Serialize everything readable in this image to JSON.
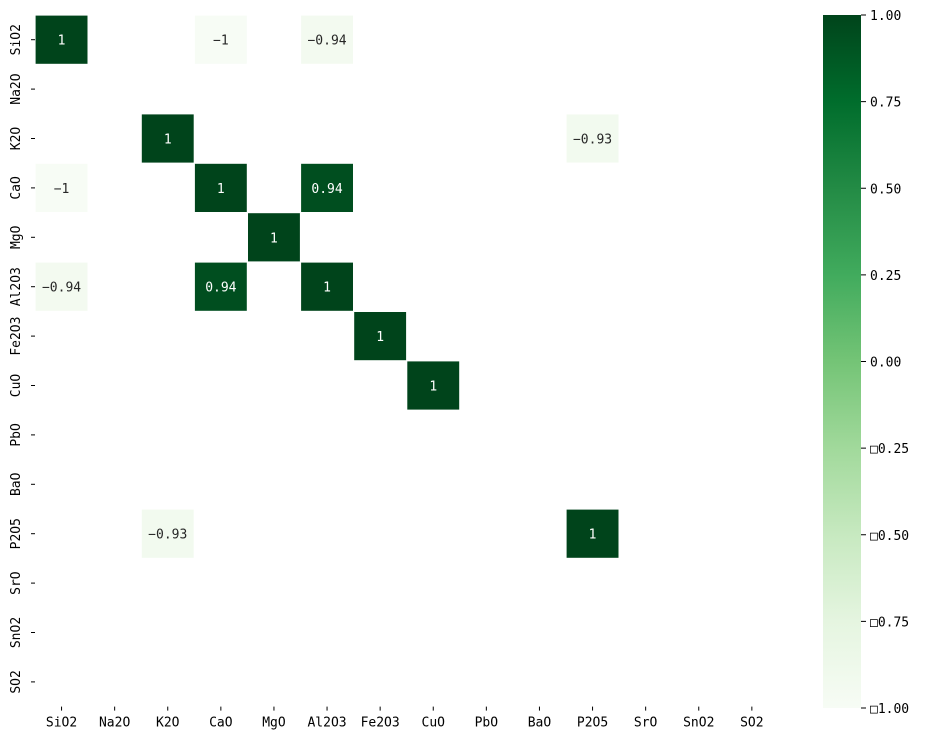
{
  "chart_data": {
    "type": "heatmap",
    "title": "",
    "xlabel": "",
    "ylabel": "",
    "x_categories": [
      "SiO2",
      "Na2O",
      "K2O",
      "CaO",
      "MgO",
      "Al2O3",
      "Fe2O3",
      "CuO",
      "PbO",
      "BaO",
      "P2O5",
      "SrO",
      "SnO2",
      "SO2"
    ],
    "y_categories": [
      "SiO2",
      "Na2O",
      "K2O",
      "CaO",
      "MgO",
      "Al2O3",
      "Fe2O3",
      "CuO",
      "PbO",
      "BaO",
      "P2O5",
      "SrO",
      "SnO2",
      "SO2"
    ],
    "x_tick_labels": [
      "SiO2",
      "Na2O",
      "K2O",
      "CaO",
      "MgO",
      "Al2O3",
      "Fe2O3",
      "CuO",
      "PbO",
      "BaO",
      "P2O5",
      "SrO",
      "SnO2",
      "SO2"
    ],
    "y_tick_labels": [
      "SiO2",
      "Na2O",
      "K2O",
      "CaO",
      "MgO",
      "Al2O3",
      "Fe2O3",
      "CuO",
      "PbO",
      "BaO",
      "P2O5",
      "SrO",
      "SnO2",
      "SO2"
    ],
    "cells": [
      {
        "row": 0,
        "col": 0,
        "value": 1,
        "label": "1"
      },
      {
        "row": 0,
        "col": 3,
        "value": -1,
        "label": "−1"
      },
      {
        "row": 0,
        "col": 5,
        "value": -0.94,
        "label": "−0.94"
      },
      {
        "row": 2,
        "col": 2,
        "value": 1,
        "label": "1"
      },
      {
        "row": 2,
        "col": 10,
        "value": -0.93,
        "label": "−0.93"
      },
      {
        "row": 3,
        "col": 0,
        "value": -1,
        "label": "−1"
      },
      {
        "row": 3,
        "col": 3,
        "value": 1,
        "label": "1"
      },
      {
        "row": 3,
        "col": 5,
        "value": 0.94,
        "label": "0.94"
      },
      {
        "row": 4,
        "col": 4,
        "value": 1,
        "label": "1"
      },
      {
        "row": 5,
        "col": 0,
        "value": -0.94,
        "label": "−0.94"
      },
      {
        "row": 5,
        "col": 3,
        "value": 0.94,
        "label": "0.94"
      },
      {
        "row": 5,
        "col": 5,
        "value": 1,
        "label": "1"
      },
      {
        "row": 6,
        "col": 6,
        "value": 1,
        "label": "1"
      },
      {
        "row": 7,
        "col": 7,
        "value": 1,
        "label": "1"
      },
      {
        "row": 10,
        "col": 2,
        "value": -0.93,
        "label": "−0.93"
      },
      {
        "row": 10,
        "col": 10,
        "value": 1,
        "label": "1"
      }
    ],
    "colorbar": {
      "vmin": -1,
      "vmax": 1,
      "ticks": [
        1,
        0.75,
        0.5,
        0.25,
        0,
        -0.25,
        -0.5,
        -0.75,
        -1
      ],
      "tick_labels": [
        "1.00",
        "0.75",
        "0.50",
        "0.25",
        "0.00",
        "□0.25",
        "□0.50",
        "□0.75",
        "□1.00"
      ],
      "cmap": "Greens",
      "colors": [
        "#f7fcf5",
        "#e5f5e0",
        "#c7e9c0",
        "#a1d99b",
        "#74c476",
        "#41ab5d",
        "#238b45",
        "#006d2c",
        "#00441b"
      ]
    },
    "grid": false,
    "legend": "colorbar-right"
  }
}
